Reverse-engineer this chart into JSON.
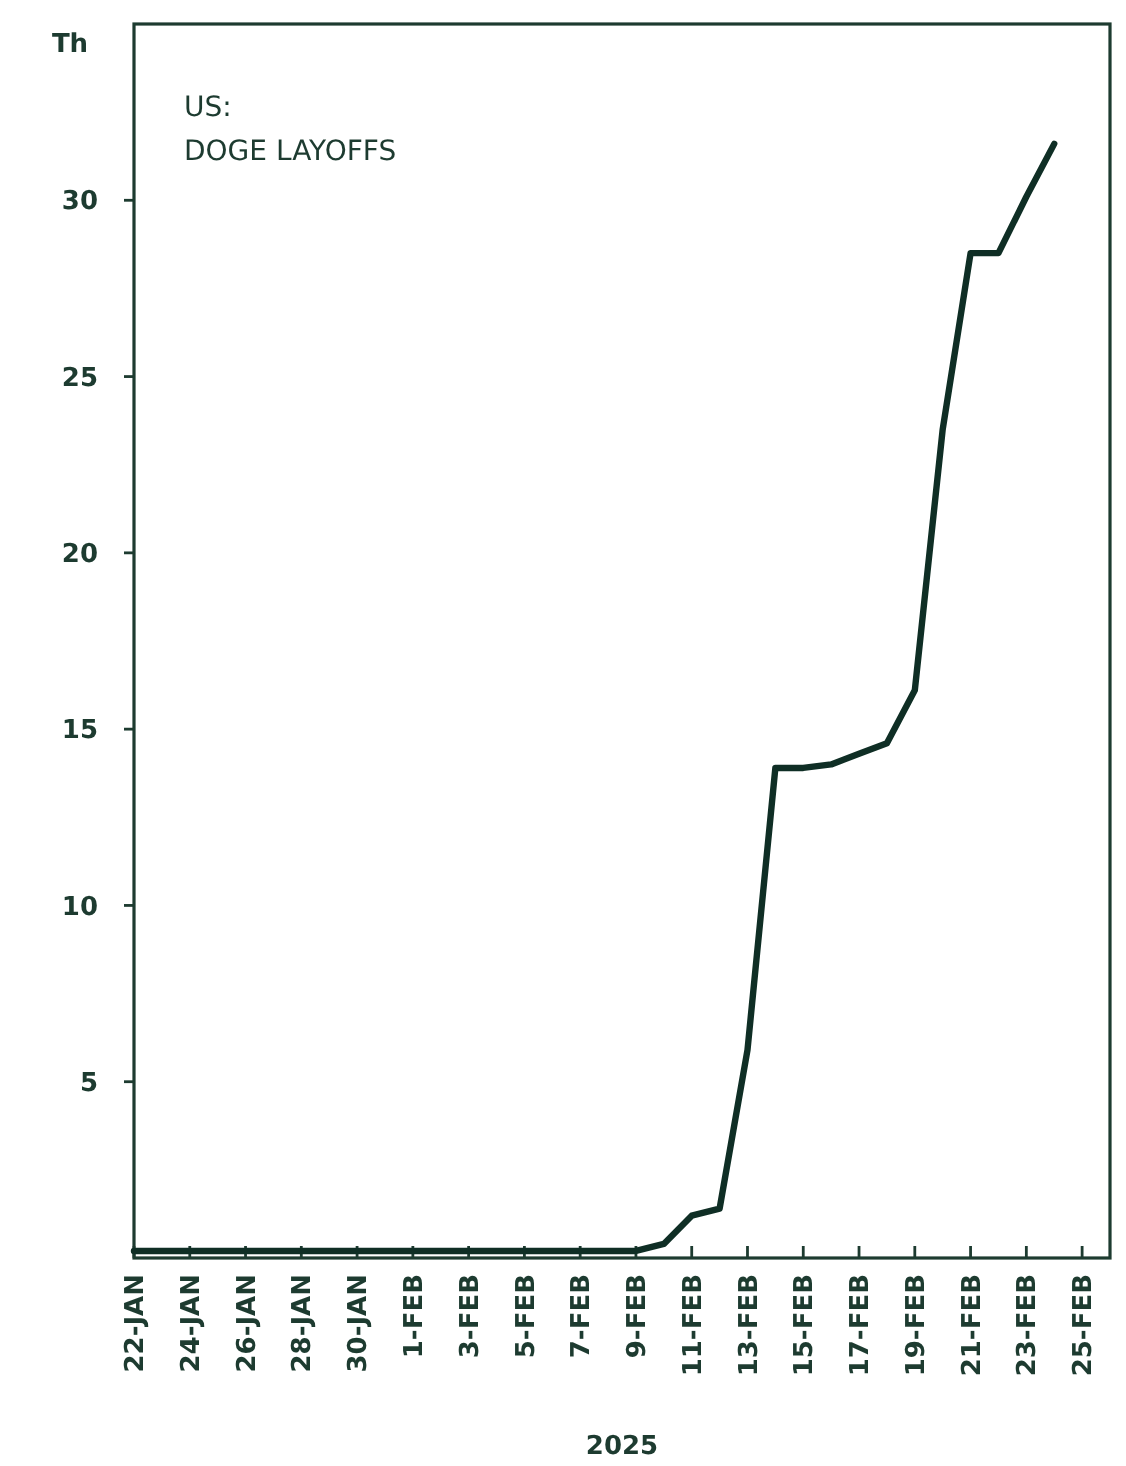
{
  "chart_data": {
    "type": "line",
    "title": "US:",
    "subtitle": "DOGE LAYOFFS",
    "ylabel": "Th",
    "xlabel": "2025",
    "x": [
      "2025-01-22",
      "2025-01-23",
      "2025-01-24",
      "2025-01-25",
      "2025-01-26",
      "2025-01-27",
      "2025-01-28",
      "2025-01-29",
      "2025-01-30",
      "2025-01-31",
      "2025-02-01",
      "2025-02-02",
      "2025-02-03",
      "2025-02-04",
      "2025-02-05",
      "2025-02-06",
      "2025-02-07",
      "2025-02-08",
      "2025-02-09",
      "2025-02-10",
      "2025-02-11",
      "2025-02-12",
      "2025-02-13",
      "2025-02-14",
      "2025-02-15",
      "2025-02-16",
      "2025-02-17",
      "2025-02-18",
      "2025-02-19",
      "2025-02-20",
      "2025-02-21",
      "2025-02-22",
      "2025-02-23",
      "2025-02-24"
    ],
    "series": [
      {
        "color": "#0f2e25",
        "values": [
          0.2,
          0.2,
          0.2,
          0.2,
          0.2,
          0.2,
          0.2,
          0.2,
          0.2,
          0.2,
          0.2,
          0.2,
          0.2,
          0.2,
          0.2,
          0.2,
          0.2,
          0.2,
          0.2,
          0.4,
          1.2,
          1.4,
          5.9,
          13.9,
          13.9,
          14.0,
          14.3,
          14.6,
          16.1,
          23.5,
          28.5,
          28.5,
          30.1,
          31.6
        ]
      }
    ],
    "xlim": [
      "2025-01-22",
      "2025-02-26"
    ],
    "xticks": [
      {
        "value": "2025-01-22",
        "label": "22-JAN"
      },
      {
        "value": "2025-01-24",
        "label": "24-JAN"
      },
      {
        "value": "2025-01-26",
        "label": "26-JAN"
      },
      {
        "value": "2025-01-28",
        "label": "28-JAN"
      },
      {
        "value": "2025-01-30",
        "label": "30-JAN"
      },
      {
        "value": "2025-02-01",
        "label": "1-FEB"
      },
      {
        "value": "2025-02-03",
        "label": "3-FEB"
      },
      {
        "value": "2025-02-05",
        "label": "5-FEB"
      },
      {
        "value": "2025-02-07",
        "label": "7-FEB"
      },
      {
        "value": "2025-02-09",
        "label": "9-FEB"
      },
      {
        "value": "2025-02-11",
        "label": "11-FEB"
      },
      {
        "value": "2025-02-13",
        "label": "13-FEB"
      },
      {
        "value": "2025-02-15",
        "label": "15-FEB"
      },
      {
        "value": "2025-02-17",
        "label": "17-FEB"
      },
      {
        "value": "2025-02-19",
        "label": "19-FEB"
      },
      {
        "value": "2025-02-21",
        "label": "21-FEB"
      },
      {
        "value": "2025-02-23",
        "label": "23-FEB"
      },
      {
        "value": "2025-02-25",
        "label": "25-FEB"
      }
    ],
    "ylim": [
      0,
      35
    ],
    "yticks": [
      5,
      10,
      15,
      20,
      25,
      30
    ],
    "grid": false,
    "marker": "none",
    "line_style": "solid"
  }
}
